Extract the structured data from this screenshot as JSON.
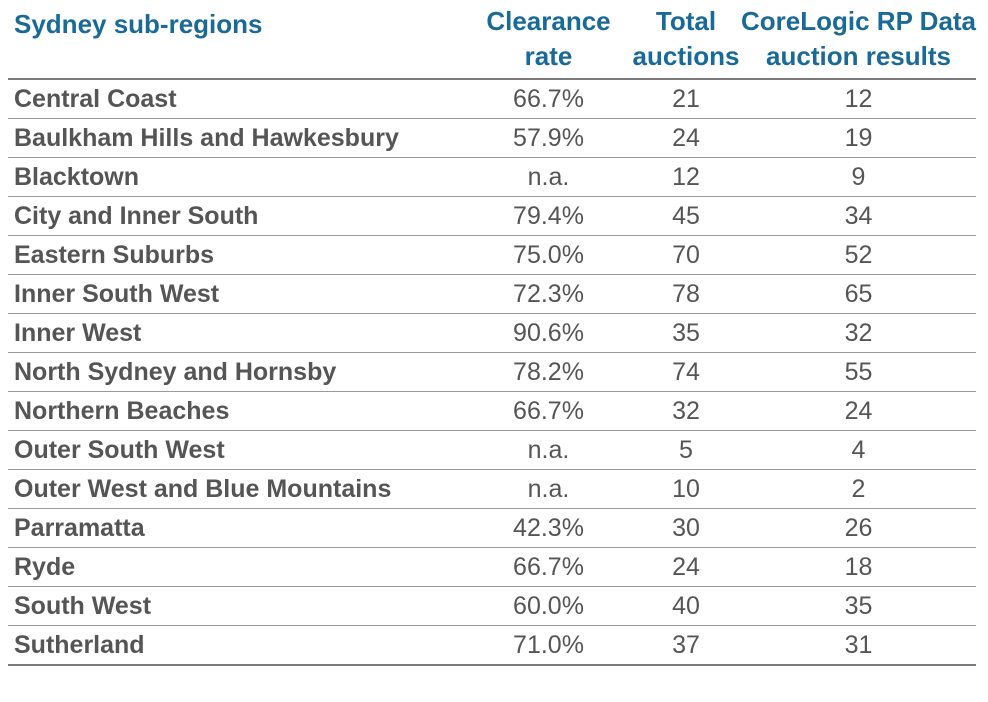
{
  "header": {
    "region": "Sydney sub-regions",
    "clearance_rate": "Clearance rate",
    "total_auctions": "Total auctions",
    "results": "CoreLogic RP Data auction results"
  },
  "rows": [
    {
      "region": "Central Coast",
      "clearance_rate": "66.7%",
      "total_auctions": "21",
      "results": "12"
    },
    {
      "region": "Baulkham Hills and Hawkesbury",
      "clearance_rate": "57.9%",
      "total_auctions": "24",
      "results": "19"
    },
    {
      "region": "Blacktown",
      "clearance_rate": "n.a.",
      "total_auctions": "12",
      "results": "9"
    },
    {
      "region": "City and Inner South",
      "clearance_rate": "79.4%",
      "total_auctions": "45",
      "results": "34"
    },
    {
      "region": "Eastern Suburbs",
      "clearance_rate": "75.0%",
      "total_auctions": "70",
      "results": "52"
    },
    {
      "region": "Inner South West",
      "clearance_rate": "72.3%",
      "total_auctions": "78",
      "results": "65"
    },
    {
      "region": "Inner West",
      "clearance_rate": "90.6%",
      "total_auctions": "35",
      "results": "32"
    },
    {
      "region": "North Sydney and Hornsby",
      "clearance_rate": "78.2%",
      "total_auctions": "74",
      "results": "55"
    },
    {
      "region": "Northern Beaches",
      "clearance_rate": "66.7%",
      "total_auctions": "32",
      "results": "24"
    },
    {
      "region": "Outer South West",
      "clearance_rate": "n.a.",
      "total_auctions": "5",
      "results": "4"
    },
    {
      "region": "Outer West and Blue Mountains",
      "clearance_rate": "n.a.",
      "total_auctions": "10",
      "results": "2"
    },
    {
      "region": "Parramatta",
      "clearance_rate": "42.3%",
      "total_auctions": "30",
      "results": "26"
    },
    {
      "region": "Ryde",
      "clearance_rate": "66.7%",
      "total_auctions": "24",
      "results": "18"
    },
    {
      "region": "South West",
      "clearance_rate": "60.0%",
      "total_auctions": "40",
      "results": "35"
    },
    {
      "region": "Sutherland",
      "clearance_rate": "71.0%",
      "total_auctions": "37",
      "results": "31"
    }
  ]
}
